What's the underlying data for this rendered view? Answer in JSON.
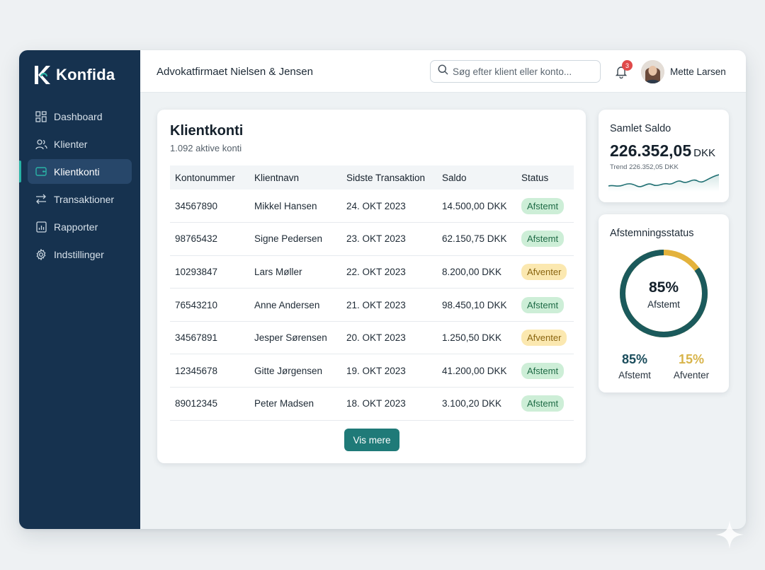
{
  "app": {
    "name": "Konfida"
  },
  "colors": {
    "sidebar": "#16324f",
    "accent": "#2ab3a6",
    "ok": "#1f6b46",
    "wait": "#d8b44a",
    "ring": "#1b5a5c"
  },
  "sidebar": {
    "items": [
      {
        "label": "Dashboard",
        "icon": "grid-icon"
      },
      {
        "label": "Klienter",
        "icon": "users-icon"
      },
      {
        "label": "Klientkonti",
        "icon": "wallet-icon",
        "active": true
      },
      {
        "label": "Transaktioner",
        "icon": "arrows-icon"
      },
      {
        "label": "Rapporter",
        "icon": "report-icon"
      },
      {
        "label": "Indstillinger",
        "icon": "gear-icon"
      }
    ]
  },
  "header": {
    "firm": "Advokatfirmaet Nielsen & Jensen",
    "search_placeholder": "Søg efter klient eller konto...",
    "notifications": "3",
    "user": "Mette Larsen"
  },
  "accounts": {
    "title": "Klientkonti",
    "subtitle": "1.092 aktive konti",
    "columns": [
      "Kontonummer",
      "Klientnavn",
      "Sidste Transaktion",
      "Saldo",
      "Status"
    ],
    "rows": [
      [
        "34567890",
        "Mikkel Hansen",
        "24. OKT 2023",
        "14.500,00 DKK",
        "Afstemt"
      ],
      [
        "98765432",
        "Signe Pedersen",
        "23. OKT 2023",
        "62.150,75 DKK",
        "Afstemt"
      ],
      [
        "10293847",
        "Lars Møller",
        "22. OKT 2023",
        "8.200,00 DKK",
        "Afventer"
      ],
      [
        "76543210",
        "Anne Andersen",
        "21. OKT 2023",
        "98.450,10 DKK",
        "Afstemt"
      ],
      [
        "34567891",
        "Jesper Sørensen",
        "20. OKT 2023",
        "1.250,50 DKK",
        "Afventer"
      ],
      [
        "12345678",
        "Gitte Jørgensen",
        "19. OKT 2023",
        "41.200,00 DKK",
        "Afstemt"
      ],
      [
        "89012345",
        "Peter Madsen",
        "18. OKT 2023",
        "3.100,20 DKK",
        "Afstemt"
      ]
    ],
    "more_label": "Vis mere"
  },
  "balance": {
    "title": "Samlet Saldo",
    "amount": "226.352,05",
    "currency": "DKK",
    "trend_label": "Trend 226.352,05 DKK"
  },
  "reconciliation": {
    "title": "Afstemningsstatus",
    "center_pct": "85%",
    "center_label": "Afstemt",
    "reconciled_fraction": 0.85,
    "stats": [
      {
        "value": "85%",
        "label": "Afstemt",
        "color": "#1b4d5c"
      },
      {
        "value": "15%",
        "label": "Afventer",
        "color": "#d8b44a"
      }
    ]
  }
}
